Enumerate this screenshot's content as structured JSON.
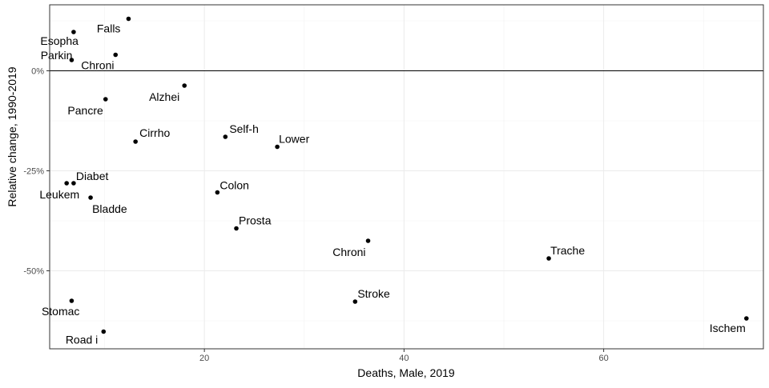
{
  "chart_data": {
    "type": "scatter",
    "title": "",
    "xlabel": "Deaths, Male, 2019",
    "ylabel": "Relative change, 1990-2019",
    "xlim": [
      4.5,
      76
    ],
    "ylim": [
      -0.695,
      0.165
    ],
    "x_ticks": [
      {
        "value": 20,
        "label": "20"
      },
      {
        "value": 40,
        "label": "40"
      },
      {
        "value": 60,
        "label": "60"
      }
    ],
    "y_ticks": [
      {
        "value": 0,
        "label": "0%"
      },
      {
        "value": -0.25,
        "label": "-25%"
      },
      {
        "value": -0.5,
        "label": "-50%"
      }
    ],
    "reference_line_y": 0,
    "grid": true,
    "points": [
      {
        "label": "Falls",
        "x": 12.4,
        "y": 0.13
      },
      {
        "label": "Esopha",
        "x": 6.9,
        "y": 0.097
      },
      {
        "label": "Parkin",
        "x": 6.7,
        "y": 0.027
      },
      {
        "label": "Chroni",
        "x": 11.1,
        "y": 0.04
      },
      {
        "label": "Alzhei",
        "x": 18.0,
        "y": -0.037
      },
      {
        "label": "Pancre",
        "x": 10.1,
        "y": -0.071
      },
      {
        "label": "Cirrho",
        "x": 13.1,
        "y": -0.177
      },
      {
        "label": "Self-h",
        "x": 22.1,
        "y": -0.165
      },
      {
        "label": "Lower",
        "x": 27.3,
        "y": -0.19
      },
      {
        "label": "Diabet",
        "x": 6.9,
        "y": -0.281
      },
      {
        "label": "Leukem",
        "x": 6.2,
        "y": -0.281
      },
      {
        "label": "Bladde",
        "x": 8.6,
        "y": -0.317
      },
      {
        "label": "Colon",
        "x": 21.3,
        "y": -0.304
      },
      {
        "label": "Prosta",
        "x": 23.2,
        "y": -0.394
      },
      {
        "label": "Chroni",
        "x": 36.4,
        "y": -0.425
      },
      {
        "label": "Trache",
        "x": 54.5,
        "y": -0.469
      },
      {
        "label": "Stroke",
        "x": 35.1,
        "y": -0.577
      },
      {
        "label": "Stomac",
        "x": 6.7,
        "y": -0.575
      },
      {
        "label": "Road i",
        "x": 9.9,
        "y": -0.652
      },
      {
        "label": "Ischem",
        "x": 74.3,
        "y": -0.619
      }
    ]
  }
}
